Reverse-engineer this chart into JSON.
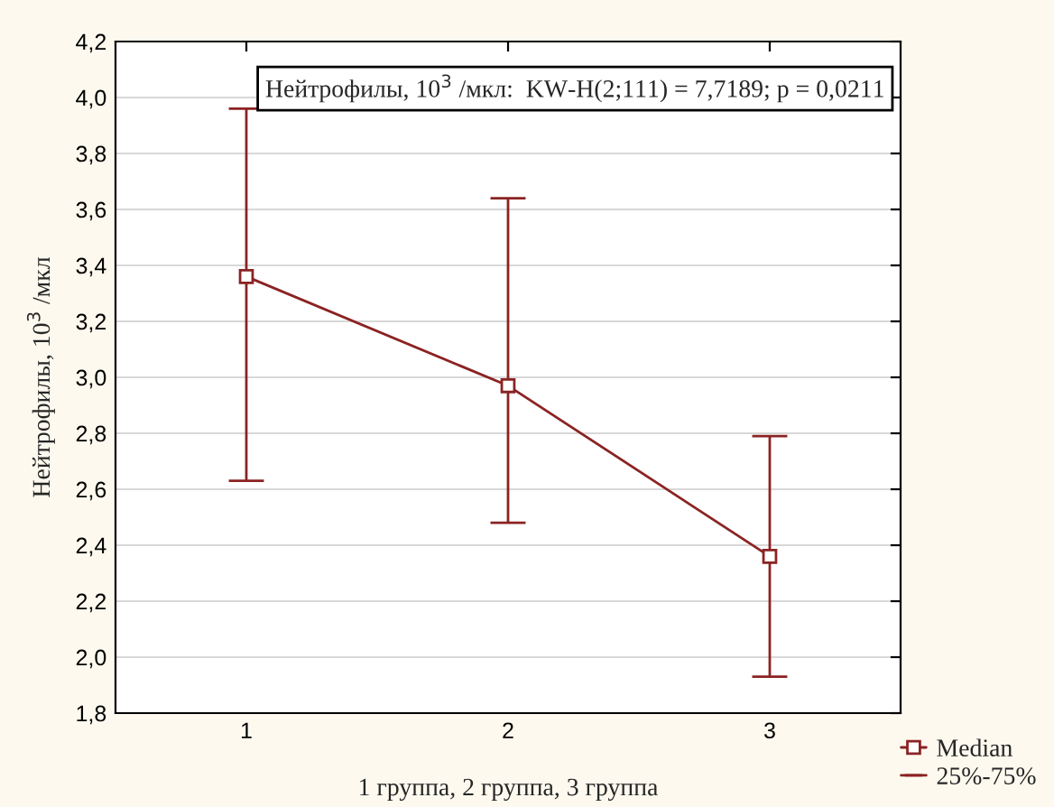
{
  "chart_data": {
    "type": "line",
    "xlabel": "1 группа, 2 группа, 3 группа",
    "ylabel": "Нейтрофилы, 10$^{3}$ /мкл",
    "categories": [
      "1",
      "2",
      "3"
    ],
    "series": [
      {
        "name": "Median",
        "color": "#8b2323",
        "values": [
          3.36,
          2.97,
          2.36
        ],
        "errors": [
          [
            2.63,
            3.96
          ],
          [
            2.48,
            3.64
          ],
          [
            1.93,
            2.79
          ]
        ]
      }
    ],
    "annotations": [
      "Нейтрофилы, 10$^{3}$ /мкл:  KW-H(2;111) = 7,7189; p = 0,0211",
      "25%-75%"
    ],
    "ylim": [
      1.8,
      4.2
    ],
    "yticks": [
      {
        "value": 1.8,
        "label": "1,8"
      },
      {
        "value": 2.0,
        "label": "2,0"
      },
      {
        "value": 2.2,
        "label": "2,2"
      },
      {
        "value": 2.4,
        "label": "2,4"
      },
      {
        "value": 2.6,
        "label": "2,6"
      },
      {
        "value": 2.8,
        "label": "2,8"
      },
      {
        "value": 3.0,
        "label": "3,0"
      },
      {
        "value": 3.2,
        "label": "3,2"
      },
      {
        "value": 3.4,
        "label": "3,4"
      },
      {
        "value": 3.6,
        "label": "3,6"
      },
      {
        "value": 3.8,
        "label": "3,8"
      },
      {
        "value": 4.0,
        "label": "4,0"
      },
      {
        "value": 4.2,
        "label": "4,2"
      }
    ],
    "grid": "y",
    "marker": "square",
    "line_style": "solid",
    "legend": "bottom right"
  }
}
